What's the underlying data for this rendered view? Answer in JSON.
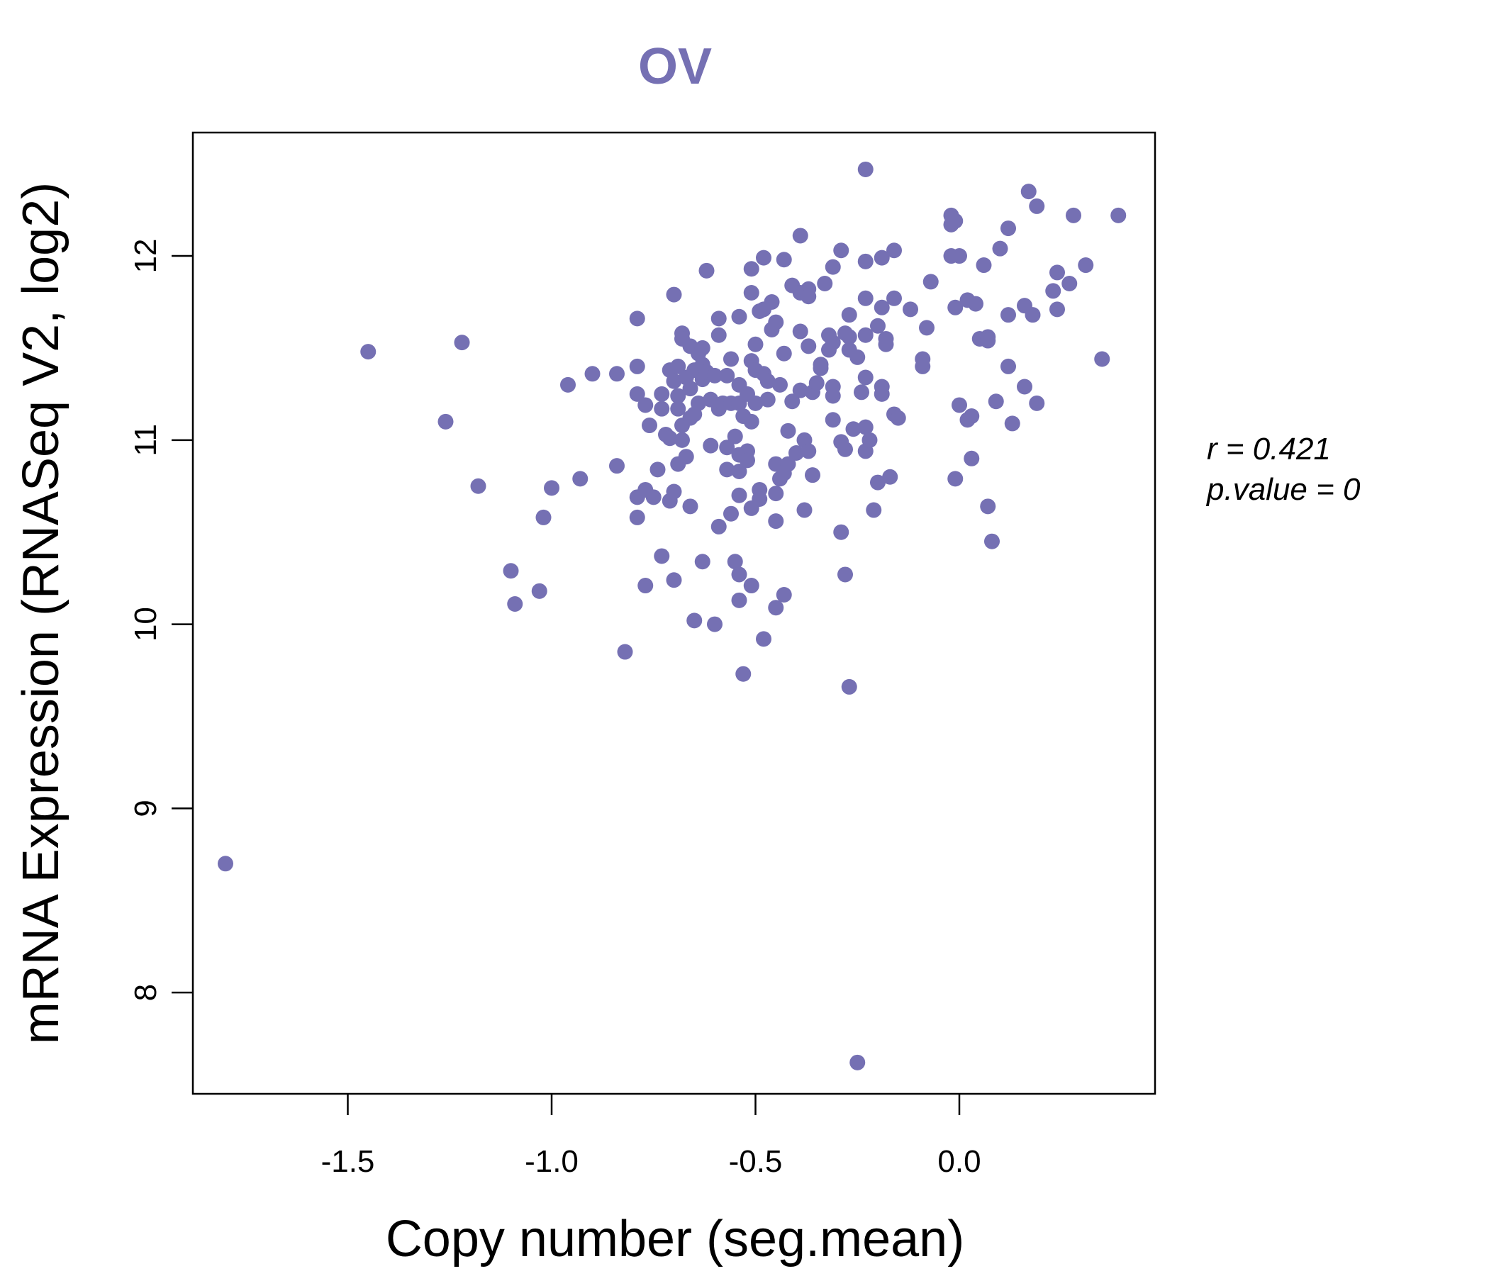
{
  "chart_data": {
    "type": "scatter",
    "title": "OV",
    "xlabel": "Copy number (seg.mean)",
    "ylabel": "mRNA Expression (RNASeq V2, log2)",
    "xlim": [
      -1.88,
      0.48
    ],
    "ylim": [
      7.45,
      12.67
    ],
    "x_ticks": [
      -1.5,
      -1.0,
      -0.5,
      0.0
    ],
    "x_tick_labels": [
      "-1.5",
      "-1.0",
      "-0.5",
      "0.0"
    ],
    "y_ticks": [
      8,
      9,
      10,
      11,
      12
    ],
    "y_tick_labels": [
      "8",
      "9",
      "10",
      "11",
      "12"
    ],
    "grid": false,
    "point_color": "#7570B3",
    "stats": {
      "r": "r = 0.421",
      "p": "p.value = 0"
    },
    "points": [
      [
        -1.8,
        8.7
      ],
      [
        -1.45,
        11.48
      ],
      [
        -1.26,
        11.1
      ],
      [
        -1.22,
        11.53
      ],
      [
        -1.18,
        10.75
      ],
      [
        -1.1,
        10.29
      ],
      [
        -1.09,
        10.11
      ],
      [
        -1.03,
        10.18
      ],
      [
        -1.02,
        10.58
      ],
      [
        -1.0,
        10.74
      ],
      [
        -0.96,
        11.3
      ],
      [
        -0.93,
        10.79
      ],
      [
        -0.9,
        11.36
      ],
      [
        -0.84,
        11.36
      ],
      [
        -0.84,
        10.86
      ],
      [
        -0.82,
        9.85
      ],
      [
        -0.79,
        11.66
      ],
      [
        -0.79,
        11.4
      ],
      [
        -0.79,
        11.25
      ],
      [
        -0.79,
        10.69
      ],
      [
        -0.79,
        10.58
      ],
      [
        -0.77,
        11.19
      ],
      [
        -0.77,
        10.73
      ],
      [
        -0.77,
        10.21
      ],
      [
        -0.76,
        11.08
      ],
      [
        -0.75,
        10.69
      ],
      [
        -0.74,
        10.84
      ],
      [
        -0.73,
        10.37
      ],
      [
        -0.73,
        11.25
      ],
      [
        -0.73,
        11.17
      ],
      [
        -0.72,
        11.03
      ],
      [
        -0.71,
        11.01
      ],
      [
        -0.71,
        11.38
      ],
      [
        -0.71,
        10.67
      ],
      [
        -0.7,
        10.24
      ],
      [
        -0.7,
        11.79
      ],
      [
        -0.7,
        11.32
      ],
      [
        -0.7,
        10.72
      ],
      [
        -0.69,
        11.4
      ],
      [
        -0.69,
        11.24
      ],
      [
        -0.69,
        11.17
      ],
      [
        -0.69,
        10.87
      ],
      [
        -0.68,
        11.58
      ],
      [
        -0.68,
        11.55
      ],
      [
        -0.68,
        11.08
      ],
      [
        -0.68,
        11.0
      ],
      [
        -0.67,
        11.34
      ],
      [
        -0.67,
        10.91
      ],
      [
        -0.66,
        11.51
      ],
      [
        -0.66,
        11.28
      ],
      [
        -0.66,
        11.12
      ],
      [
        -0.66,
        10.64
      ],
      [
        -0.65,
        11.38
      ],
      [
        -0.65,
        11.14
      ],
      [
        -0.65,
        10.02
      ],
      [
        -0.64,
        11.47
      ],
      [
        -0.64,
        11.2
      ],
      [
        -0.63,
        11.5
      ],
      [
        -0.63,
        11.41
      ],
      [
        -0.63,
        11.33
      ],
      [
        -0.63,
        10.34
      ],
      [
        -0.62,
        11.92
      ],
      [
        -0.62,
        11.37
      ],
      [
        -0.61,
        11.22
      ],
      [
        -0.61,
        10.97
      ],
      [
        -0.6,
        11.35
      ],
      [
        -0.6,
        10.0
      ],
      [
        -0.59,
        11.66
      ],
      [
        -0.59,
        11.57
      ],
      [
        -0.59,
        11.17
      ],
      [
        -0.59,
        10.53
      ],
      [
        -0.58,
        11.2
      ],
      [
        -0.57,
        11.35
      ],
      [
        -0.57,
        10.96
      ],
      [
        -0.57,
        10.84
      ],
      [
        -0.56,
        11.44
      ],
      [
        -0.56,
        11.2
      ],
      [
        -0.56,
        10.6
      ],
      [
        -0.55,
        11.02
      ],
      [
        -0.55,
        10.34
      ],
      [
        -0.54,
        11.67
      ],
      [
        -0.54,
        11.3
      ],
      [
        -0.54,
        11.2
      ],
      [
        -0.54,
        10.92
      ],
      [
        -0.54,
        10.83
      ],
      [
        -0.54,
        10.7
      ],
      [
        -0.54,
        10.27
      ],
      [
        -0.54,
        10.13
      ],
      [
        -0.53,
        9.73
      ],
      [
        -0.53,
        11.13
      ],
      [
        -0.52,
        11.25
      ],
      [
        -0.52,
        10.94
      ],
      [
        -0.52,
        10.89
      ],
      [
        -0.51,
        11.93
      ],
      [
        -0.51,
        11.8
      ],
      [
        -0.51,
        11.43
      ],
      [
        -0.51,
        11.1
      ],
      [
        -0.51,
        10.63
      ],
      [
        -0.51,
        10.21
      ],
      [
        -0.5,
        11.52
      ],
      [
        -0.5,
        11.38
      ],
      [
        -0.5,
        11.2
      ],
      [
        -0.49,
        11.7
      ],
      [
        -0.49,
        10.73
      ],
      [
        -0.49,
        10.68
      ],
      [
        -0.48,
        11.99
      ],
      [
        -0.48,
        11.71
      ],
      [
        -0.48,
        11.36
      ],
      [
        -0.48,
        9.92
      ],
      [
        -0.47,
        11.32
      ],
      [
        -0.47,
        11.22
      ],
      [
        -0.46,
        11.75
      ],
      [
        -0.46,
        11.6
      ],
      [
        -0.45,
        11.64
      ],
      [
        -0.45,
        10.87
      ],
      [
        -0.45,
        10.71
      ],
      [
        -0.45,
        10.56
      ],
      [
        -0.45,
        10.09
      ],
      [
        -0.44,
        11.3
      ],
      [
        -0.44,
        10.79
      ],
      [
        -0.43,
        11.98
      ],
      [
        -0.43,
        11.47
      ],
      [
        -0.43,
        10.82
      ],
      [
        -0.43,
        10.16
      ],
      [
        -0.42,
        11.05
      ],
      [
        -0.42,
        10.87
      ],
      [
        -0.41,
        11.84
      ],
      [
        -0.41,
        11.21
      ],
      [
        -0.4,
        10.93
      ],
      [
        -0.39,
        12.11
      ],
      [
        -0.39,
        11.8
      ],
      [
        -0.39,
        11.59
      ],
      [
        -0.39,
        11.27
      ],
      [
        -0.38,
        11.0
      ],
      [
        -0.38,
        10.62
      ],
      [
        -0.37,
        11.82
      ],
      [
        -0.37,
        11.78
      ],
      [
        -0.37,
        11.51
      ],
      [
        -0.37,
        10.94
      ],
      [
        -0.36,
        11.26
      ],
      [
        -0.36,
        10.81
      ],
      [
        -0.35,
        11.31
      ],
      [
        -0.34,
        11.41
      ],
      [
        -0.34,
        11.39
      ],
      [
        -0.33,
        11.85
      ],
      [
        -0.32,
        11.57
      ],
      [
        -0.32,
        11.49
      ],
      [
        -0.31,
        11.94
      ],
      [
        -0.31,
        11.53
      ],
      [
        -0.31,
        11.29
      ],
      [
        -0.31,
        11.24
      ],
      [
        -0.31,
        11.11
      ],
      [
        -0.29,
        12.03
      ],
      [
        -0.29,
        10.99
      ],
      [
        -0.29,
        10.5
      ],
      [
        -0.28,
        10.95
      ],
      [
        -0.28,
        10.27
      ],
      [
        -0.28,
        11.58
      ],
      [
        -0.27,
        11.68
      ],
      [
        -0.27,
        11.49
      ],
      [
        -0.27,
        11.56
      ],
      [
        -0.27,
        9.66
      ],
      [
        -0.26,
        11.06
      ],
      [
        -0.25,
        7.62
      ],
      [
        -0.25,
        11.45
      ],
      [
        -0.24,
        11.26
      ],
      [
        -0.23,
        12.47
      ],
      [
        -0.23,
        11.97
      ],
      [
        -0.23,
        11.77
      ],
      [
        -0.23,
        11.57
      ],
      [
        -0.23,
        11.34
      ],
      [
        -0.23,
        11.07
      ],
      [
        -0.23,
        10.94
      ],
      [
        -0.22,
        11.0
      ],
      [
        -0.21,
        10.62
      ],
      [
        -0.2,
        11.62
      ],
      [
        -0.2,
        10.77
      ],
      [
        -0.19,
        11.99
      ],
      [
        -0.19,
        11.72
      ],
      [
        -0.19,
        11.29
      ],
      [
        -0.19,
        11.25
      ],
      [
        -0.18,
        11.55
      ],
      [
        -0.18,
        11.52
      ],
      [
        -0.17,
        10.8
      ],
      [
        -0.16,
        11.77
      ],
      [
        -0.16,
        11.14
      ],
      [
        -0.16,
        12.03
      ],
      [
        -0.15,
        11.12
      ],
      [
        -0.12,
        11.71
      ],
      [
        -0.09,
        11.44
      ],
      [
        -0.09,
        11.4
      ],
      [
        -0.08,
        11.61
      ],
      [
        -0.07,
        11.86
      ],
      [
        -0.02,
        12.22
      ],
      [
        -0.02,
        12.17
      ],
      [
        -0.02,
        12.0
      ],
      [
        -0.01,
        12.19
      ],
      [
        -0.01,
        11.72
      ],
      [
        -0.01,
        10.79
      ],
      [
        0.0,
        12.0
      ],
      [
        0.0,
        11.19
      ],
      [
        0.02,
        11.76
      ],
      [
        0.02,
        11.11
      ],
      [
        0.03,
        11.13
      ],
      [
        0.03,
        10.9
      ],
      [
        0.04,
        11.74
      ],
      [
        0.05,
        11.55
      ],
      [
        0.06,
        11.95
      ],
      [
        0.07,
        11.56
      ],
      [
        0.07,
        11.54
      ],
      [
        0.07,
        10.64
      ],
      [
        0.08,
        10.45
      ],
      [
        0.09,
        11.21
      ],
      [
        0.1,
        12.04
      ],
      [
        0.12,
        12.15
      ],
      [
        0.12,
        11.68
      ],
      [
        0.12,
        11.4
      ],
      [
        0.13,
        11.09
      ],
      [
        0.16,
        11.73
      ],
      [
        0.16,
        11.29
      ],
      [
        0.17,
        12.35
      ],
      [
        0.18,
        11.68
      ],
      [
        0.19,
        12.27
      ],
      [
        0.19,
        11.2
      ],
      [
        0.23,
        11.81
      ],
      [
        0.24,
        11.91
      ],
      [
        0.24,
        11.71
      ],
      [
        0.27,
        11.85
      ],
      [
        0.28,
        12.22
      ],
      [
        0.31,
        11.95
      ],
      [
        0.35,
        11.44
      ],
      [
        0.39,
        12.22
      ]
    ]
  }
}
